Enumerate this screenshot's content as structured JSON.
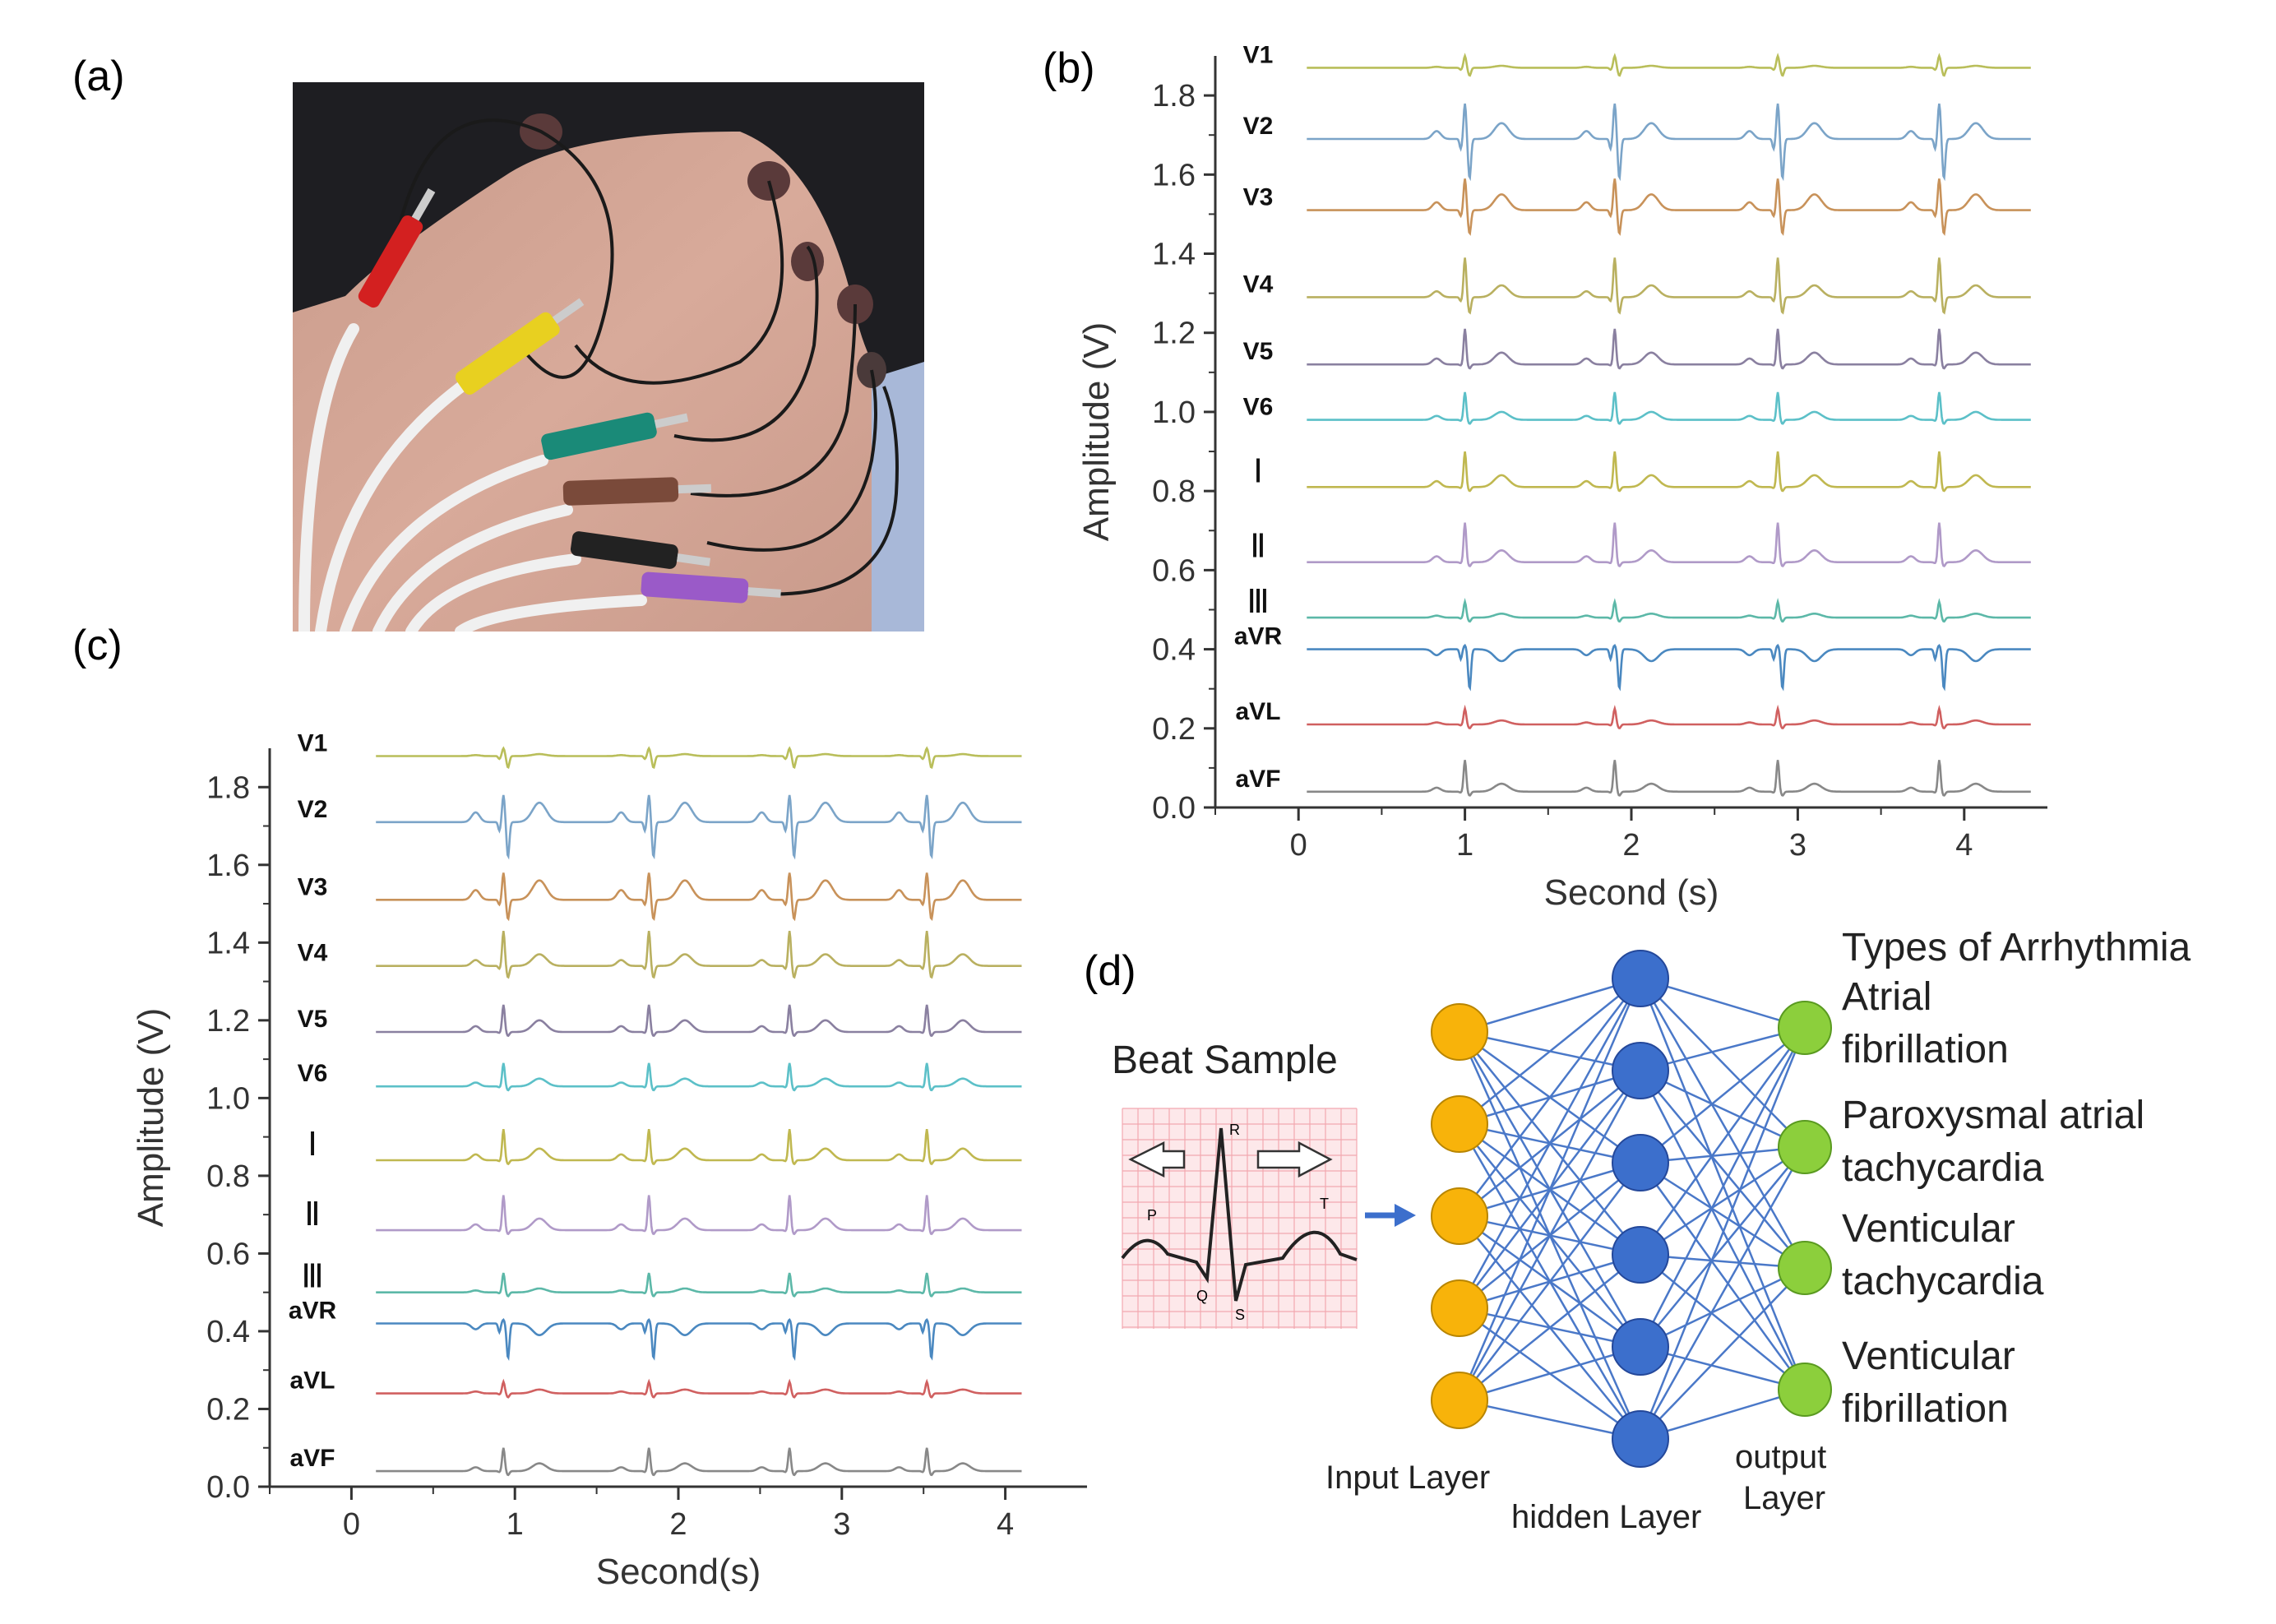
{
  "panels": {
    "a": {
      "label": "(a)"
    },
    "b": {
      "label": "(b)"
    },
    "c": {
      "label": "(c)"
    },
    "d": {
      "label": "(d)"
    }
  },
  "chart_data": [
    {
      "type": "line",
      "panel": "(b)",
      "xlabel": "Second (s)",
      "ylabel": "Amplitude (V)",
      "xlim": [
        -0.5,
        4.5
      ],
      "ylim": [
        0,
        1.9
      ],
      "xticks": [
        0,
        1,
        2,
        3,
        4
      ],
      "yticks": [
        0.0,
        0.2,
        0.4,
        0.6,
        0.8,
        1.0,
        1.2,
        1.4,
        1.6,
        1.8
      ],
      "ytick_labels": [
        "0.0",
        "0.2",
        "0.4",
        "0.6",
        "0.8",
        "1.0",
        "1.2",
        "1.4",
        "1.6",
        "1.8"
      ],
      "xtick_labels": [
        "0",
        "1",
        "2",
        "3",
        "4"
      ],
      "grid": false,
      "x_start": 0.05,
      "x_end": 4.4,
      "beats": [
        1.0,
        1.9,
        2.88,
        3.85
      ],
      "series": [
        {
          "name": "V1",
          "color": "#b9be5a",
          "baseline": 1.87,
          "r": 0.03,
          "s": -0.02,
          "t": 0.005
        },
        {
          "name": "V2",
          "color": "#7ba4c8",
          "baseline": 1.69,
          "r": 0.09,
          "s": -0.1,
          "t": 0.04
        },
        {
          "name": "V3",
          "color": "#c8925a",
          "baseline": 1.51,
          "r": 0.08,
          "s": -0.06,
          "t": 0.04
        },
        {
          "name": "V4",
          "color": "#b9b060",
          "baseline": 1.29,
          "r": 0.1,
          "s": -0.04,
          "t": 0.03
        },
        {
          "name": "V5",
          "color": "#8a80a0",
          "baseline": 1.12,
          "r": 0.09,
          "s": -0.01,
          "t": 0.03
        },
        {
          "name": "V6",
          "color": "#5cc0c8",
          "baseline": 0.98,
          "r": 0.07,
          "s": -0.01,
          "t": 0.02
        },
        {
          "name": "Ⅰ",
          "color": "#c0b850",
          "baseline": 0.81,
          "r": 0.09,
          "s": -0.01,
          "t": 0.03
        },
        {
          "name": "Ⅱ",
          "color": "#b09ac8",
          "baseline": 0.62,
          "r": 0.1,
          "s": -0.01,
          "t": 0.03
        },
        {
          "name": "Ⅲ",
          "color": "#5cb8a8",
          "baseline": 0.48,
          "r": 0.04,
          "s": -0.01,
          "t": 0.01
        },
        {
          "name": "aVR",
          "color": "#4a88c0",
          "baseline": 0.4,
          "r": 0.01,
          "s": -0.1,
          "t": -0.03
        },
        {
          "name": "aVL",
          "color": "#d06060",
          "baseline": 0.21,
          "r": 0.04,
          "s": -0.01,
          "t": 0.01
        },
        {
          "name": "aVF",
          "color": "#888888",
          "baseline": 0.04,
          "r": 0.08,
          "s": -0.01,
          "t": 0.02
        }
      ]
    },
    {
      "type": "line",
      "panel": "(c)",
      "xlabel": "Second(s)",
      "ylabel": "Amplitude (V)",
      "xlim": [
        -0.5,
        4.5
      ],
      "ylim": [
        0,
        1.9
      ],
      "xticks": [
        0,
        1,
        2,
        3,
        4
      ],
      "yticks": [
        0.0,
        0.2,
        0.4,
        0.6,
        0.8,
        1.0,
        1.2,
        1.4,
        1.6,
        1.8
      ],
      "ytick_labels": [
        "0.0",
        "0.2",
        "0.4",
        "0.6",
        "0.8",
        "1.0",
        "1.2",
        "1.4",
        "1.6",
        "1.8"
      ],
      "xtick_labels": [
        "0",
        "1",
        "2",
        "3",
        "4"
      ],
      "grid": false,
      "x_start": 0.15,
      "x_end": 4.1,
      "beats": [
        0.93,
        1.82,
        2.68,
        3.52
      ],
      "series": [
        {
          "name": "V1",
          "color": "#b9be5a",
          "baseline": 1.88,
          "r": 0.02,
          "s": -0.03,
          "t": 0.005
        },
        {
          "name": "V2",
          "color": "#7ba4c8",
          "baseline": 1.71,
          "r": 0.07,
          "s": -0.09,
          "t": 0.05
        },
        {
          "name": "V3",
          "color": "#c8925a",
          "baseline": 1.51,
          "r": 0.07,
          "s": -0.05,
          "t": 0.05
        },
        {
          "name": "V4",
          "color": "#b9b060",
          "baseline": 1.34,
          "r": 0.09,
          "s": -0.03,
          "t": 0.03
        },
        {
          "name": "V5",
          "color": "#8a80a0",
          "baseline": 1.17,
          "r": 0.07,
          "s": -0.01,
          "t": 0.03
        },
        {
          "name": "V6",
          "color": "#5cc0c8",
          "baseline": 1.03,
          "r": 0.06,
          "s": -0.01,
          "t": 0.02
        },
        {
          "name": "Ⅰ",
          "color": "#c0b850",
          "baseline": 0.84,
          "r": 0.08,
          "s": -0.01,
          "t": 0.03
        },
        {
          "name": "Ⅱ",
          "color": "#b09ac8",
          "baseline": 0.66,
          "r": 0.09,
          "s": -0.01,
          "t": 0.03
        },
        {
          "name": "Ⅲ",
          "color": "#5cb8a8",
          "baseline": 0.5,
          "r": 0.05,
          "s": -0.01,
          "t": 0.01
        },
        {
          "name": "aVR",
          "color": "#4a88c0",
          "baseline": 0.42,
          "r": 0.01,
          "s": -0.09,
          "t": -0.03
        },
        {
          "name": "aVL",
          "color": "#d06060",
          "baseline": 0.24,
          "r": 0.03,
          "s": -0.01,
          "t": 0.01
        },
        {
          "name": "aVF",
          "color": "#888888",
          "baseline": 0.04,
          "r": 0.06,
          "s": -0.01,
          "t": 0.02
        }
      ]
    }
  ],
  "network": {
    "beat_sample_title": "Beat Sample",
    "ecg_wave_labels": [
      "P",
      "Q",
      "R",
      "S",
      "T"
    ],
    "input_layer_label": "Input Layer",
    "hidden_layer_label": "hidden Layer",
    "output_layer_label_line1": "output",
    "output_layer_label_line2": "Layer",
    "input_nodes": 5,
    "hidden_nodes": 6,
    "output_nodes": 4,
    "colors": {
      "input": "#f8b30a",
      "hidden": "#3c6fcc",
      "output": "#8ccf3c",
      "edge": "#4a78c8",
      "arrow": "#3c6fcc"
    },
    "output_title": "Types of Arrhythmia",
    "output_classes": [
      [
        "Atrial",
        "fibrillation"
      ],
      [
        "Paroxysmal atrial",
        "tachycardia"
      ],
      [
        "Venticular",
        "tachycardia"
      ],
      [
        "Venticular",
        "fibrillation"
      ]
    ]
  },
  "photo": {
    "electrode_colors": [
      "#d32020",
      "#e8d020",
      "#1a8a78",
      "#7a4a3a",
      "#222222",
      "#9a5ac8"
    ]
  }
}
